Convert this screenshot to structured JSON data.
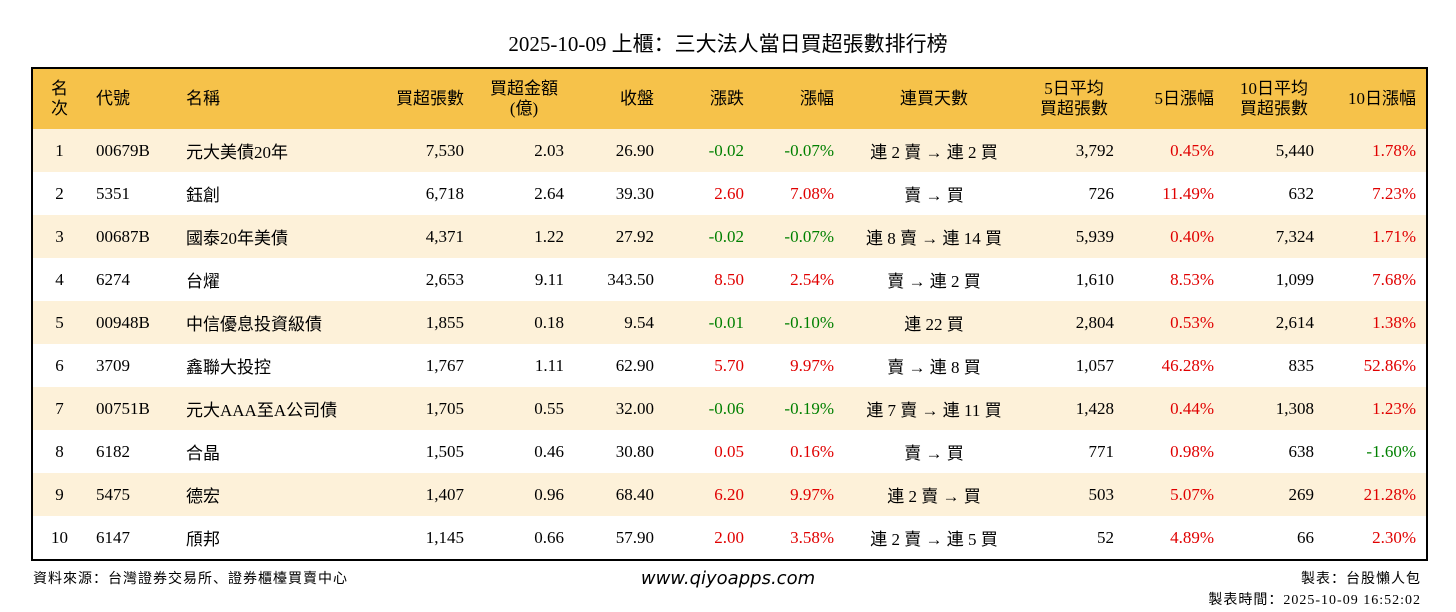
{
  "title": "2025-10-09 上櫃：三大法人當日買超張數排行榜",
  "table": {
    "header": [
      "名次",
      "代號",
      "名稱",
      "買超張數",
      "買超金額\n(億)",
      "收盤",
      "漲跌",
      "漲幅",
      "連買天數",
      "5日平均\n買超張數",
      "5日漲幅",
      "10日平均\n買超張數",
      "10日漲幅"
    ],
    "rows": [
      [
        "1",
        "00679B",
        "元大美債20年",
        "7,530",
        "2.03",
        "26.90",
        "-0.02",
        "-0.07%",
        "連 2 賣 → 連 2 買",
        "3,792",
        "0.45%",
        "5,440",
        "1.78%"
      ],
      [
        "2",
        "5351",
        "鈺創",
        "6,718",
        "2.64",
        "39.30",
        "2.60",
        "7.08%",
        "賣 → 買",
        "726",
        "11.49%",
        "632",
        "7.23%"
      ],
      [
        "3",
        "00687B",
        "國泰20年美債",
        "4,371",
        "1.22",
        "27.92",
        "-0.02",
        "-0.07%",
        "連 8 賣 → 連 14 買",
        "5,939",
        "0.40%",
        "7,324",
        "1.71%"
      ],
      [
        "4",
        "6274",
        "台燿",
        "2,653",
        "9.11",
        "343.50",
        "8.50",
        "2.54%",
        "賣 → 連 2 買",
        "1,610",
        "8.53%",
        "1,099",
        "7.68%"
      ],
      [
        "5",
        "00948B",
        "中信優息投資級債",
        "1,855",
        "0.18",
        "9.54",
        "-0.01",
        "-0.10%",
        "連 22 買",
        "2,804",
        "0.53%",
        "2,614",
        "1.38%"
      ],
      [
        "6",
        "3709",
        "鑫聯大投控",
        "1,767",
        "1.11",
        "62.90",
        "5.70",
        "9.97%",
        "賣 → 連 8 買",
        "1,057",
        "46.28%",
        "835",
        "52.86%"
      ],
      [
        "7",
        "00751B",
        "元大AAA至A公司債",
        "1,705",
        "0.55",
        "32.00",
        "-0.06",
        "-0.19%",
        "連 7 賣 → 連 11 買",
        "1,428",
        "0.44%",
        "1,308",
        "1.23%"
      ],
      [
        "8",
        "6182",
        "合晶",
        "1,505",
        "0.46",
        "30.80",
        "0.05",
        "0.16%",
        "賣 → 買",
        "771",
        "0.98%",
        "638",
        "-1.60%"
      ],
      [
        "9",
        "5475",
        "德宏",
        "1,407",
        "0.96",
        "68.40",
        "6.20",
        "9.97%",
        "連 2 賣 → 買",
        "503",
        "5.07%",
        "269",
        "21.28%"
      ],
      [
        "10",
        "6147",
        "頎邦",
        "1,145",
        "0.66",
        "57.90",
        "2.00",
        "3.58%",
        "連 2 賣 → 連 5 買",
        "52",
        "4.89%",
        "66",
        "2.30%"
      ]
    ]
  },
  "footer": {
    "source": "資料來源：台灣證券交易所、證券櫃檯買賣中心",
    "site": "www.qiyoapps.com",
    "maker": "製表：台股懶人包",
    "time": "製表時間：2025-10-09 16:52:02"
  }
}
